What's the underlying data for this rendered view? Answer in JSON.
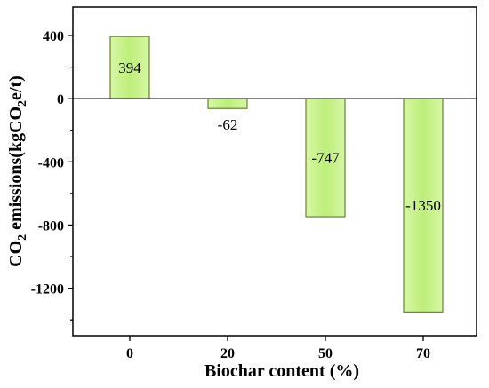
{
  "chart_data": {
    "type": "bar",
    "categories": [
      "0",
      "20",
      "50",
      "70"
    ],
    "values": [
      394,
      -62,
      -747,
      -1350
    ],
    "data_labels": [
      "394",
      "-62",
      "-747",
      "-1350"
    ],
    "xlabel": "Biochar content (%)",
    "ylabel": {
      "part1": "CO",
      "sub1": "2",
      "part2": " emissions(kgCO",
      "sub2": "2",
      "part3": "e/t)"
    },
    "ylim": [
      -1500,
      580
    ],
    "yticks": [
      -1200,
      -800,
      -400,
      0,
      400
    ],
    "ytick_labels": [
      "-1200",
      "-800",
      "-400",
      "0",
      "400"
    ],
    "grid": false,
    "legend": "none",
    "bar_color": "#c6f08a",
    "bar_edge_color": "#4d6a16"
  }
}
